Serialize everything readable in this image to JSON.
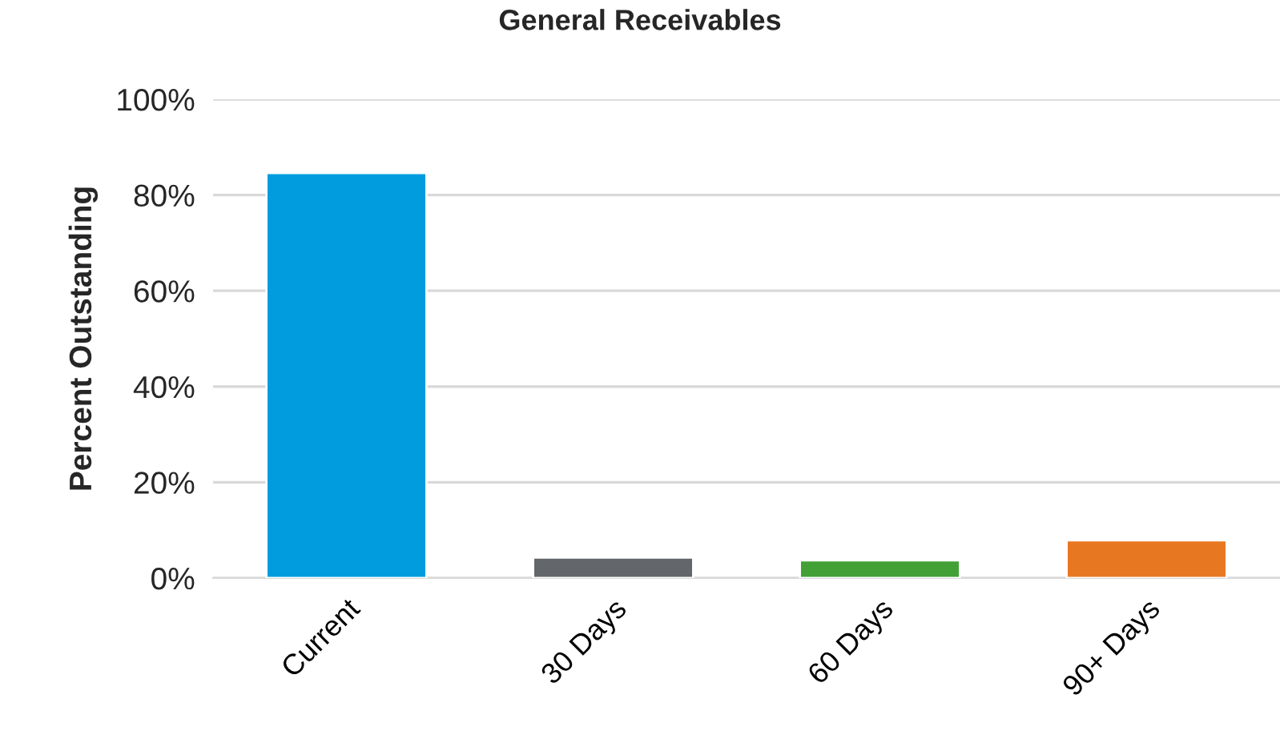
{
  "chart_data": {
    "type": "bar",
    "title": "General Receivables",
    "ylabel": "Percent Outstanding",
    "categories": [
      "Current",
      "30 Days",
      "60 Days",
      "90+ Days"
    ],
    "values": [
      84.6,
      4.3,
      3.7,
      7.9
    ],
    "colors": [
      "#009cde",
      "#63666a",
      "#43a036",
      "#e87722"
    ],
    "ylim": [
      0,
      100
    ],
    "yticks": [
      {
        "value": 0,
        "label": "0%"
      },
      {
        "value": 20,
        "label": "20%"
      },
      {
        "value": 40,
        "label": "40%"
      },
      {
        "value": 60,
        "label": "60%"
      },
      {
        "value": 80,
        "label": "80%"
      },
      {
        "value": 100,
        "label": "100%"
      }
    ],
    "grid": "y",
    "legend": false
  }
}
